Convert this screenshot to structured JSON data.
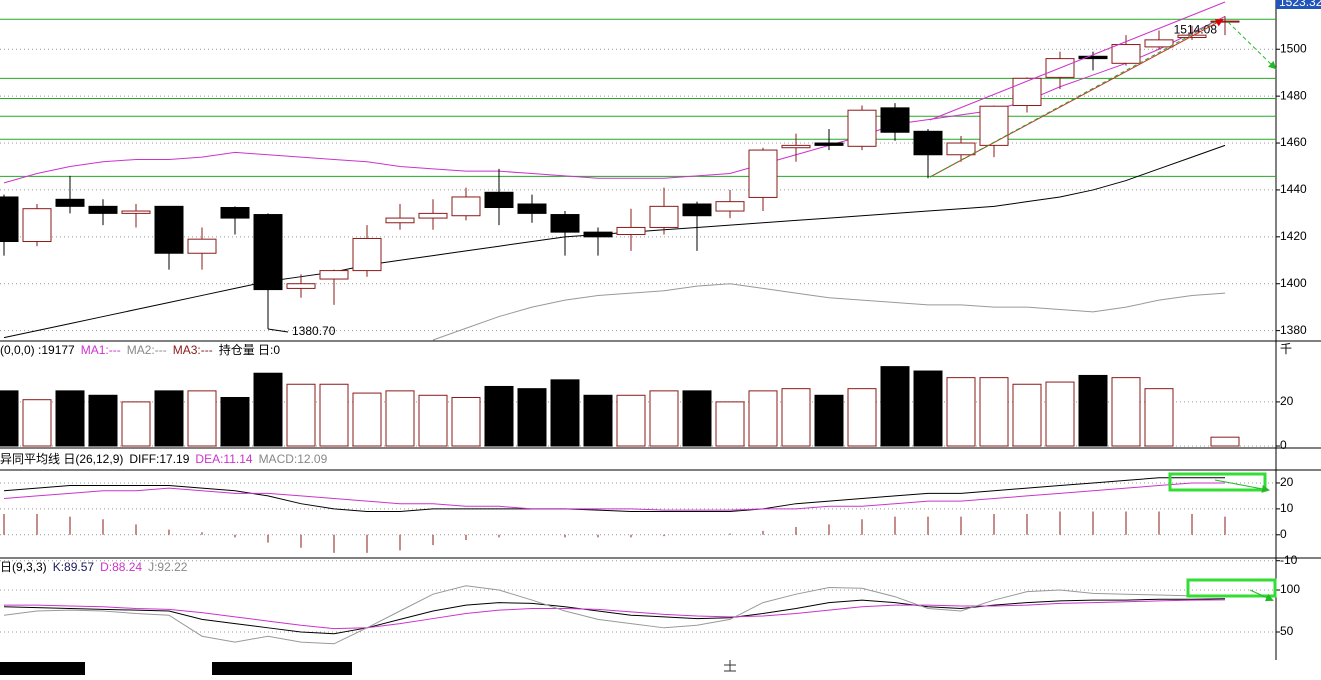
{
  "chart_data": [
    {
      "type": "candlestick",
      "open": [
        1437,
        1418,
        1436,
        1433,
        1430,
        1433,
        1413,
        1432.5,
        1429.5,
        1398,
        1402,
        1405.6,
        1426,
        1428,
        1429,
        1439,
        1434,
        1429.5,
        1422,
        1421,
        1424,
        1434,
        1431,
        1436.8,
        1458,
        1460,
        1458.6,
        1475,
        1465,
        1455,
        1459,
        1476,
        1488,
        1497,
        1494,
        1501,
        1505,
        1512
      ],
      "high": [
        1438,
        1434,
        1446,
        1436,
        1434,
        1433,
        1424,
        1433,
        1430,
        1404,
        1406,
        1425,
        1434,
        1436,
        1441,
        1449,
        1438,
        1431,
        1424,
        1432,
        1441,
        1435,
        1440,
        1458,
        1464,
        1466,
        1476,
        1477,
        1466,
        1463,
        1476,
        1488,
        1499,
        1499,
        1506,
        1508,
        1510,
        1514.08
      ],
      "low": [
        1412,
        1416,
        1430,
        1425,
        1424,
        1406,
        1406,
        1421,
        1380.7,
        1394,
        1391,
        1403,
        1423,
        1423,
        1427,
        1425,
        1426,
        1412,
        1412,
        1414,
        1421,
        1414,
        1428,
        1431,
        1452,
        1457,
        1457,
        1461,
        1445,
        1452,
        1454,
        1473,
        1483,
        1491,
        1493,
        1500,
        1504,
        1506
      ],
      "close": [
        1418,
        1432,
        1433,
        1430,
        1431,
        1413,
        1419,
        1428,
        1397.5,
        1400,
        1405.6,
        1419.3,
        1428,
        1430,
        1437,
        1432.5,
        1430,
        1422,
        1420,
        1424,
        1433,
        1429,
        1435,
        1457,
        1459,
        1459,
        1474,
        1464.6,
        1455,
        1460,
        1475.7,
        1487.6,
        1496,
        1496,
        1502,
        1504,
        1506,
        1512
      ],
      "up_color": "#8b1a1a",
      "down_color": "#000000",
      "series": [
        {
          "color": "#cc33cc",
          "values": [
            1443,
            1447,
            1450,
            1452,
            1453,
            1453,
            1454,
            1456,
            1455,
            1454,
            1453,
            1452,
            1450,
            1449,
            1448,
            1448,
            1447,
            1446,
            1445,
            1445,
            1445,
            1446,
            1447,
            1451,
            1455,
            1459,
            1463,
            1468,
            1470,
            1472,
            1474,
            1478,
            1484,
            1489,
            1494,
            1500,
            1507,
            1514
          ]
        },
        {
          "color": "#000000",
          "values": [
            1377,
            1380,
            1383,
            1386,
            1389,
            1392,
            1395,
            1398,
            1401,
            1403,
            1405,
            1408,
            1410,
            1412,
            1414,
            1416,
            1418,
            1420,
            1421,
            1422,
            1423,
            1424,
            1425,
            1426,
            1427,
            1428,
            1429,
            1430,
            1431,
            1432,
            1433,
            1435,
            1437,
            1440,
            1444,
            1449,
            1454,
            1459
          ]
        },
        {
          "color": "#999999",
          "values": [
            null,
            null,
            null,
            null,
            null,
            null,
            null,
            null,
            null,
            null,
            null,
            null,
            null,
            1376,
            1381,
            1386,
            1390,
            1393,
            1395,
            1396,
            1397,
            1399,
            1400,
            1398,
            1396,
            1394,
            1393,
            1392,
            1391,
            1391,
            1390,
            1390,
            1389,
            1388,
            1390,
            1393,
            1395,
            1396
          ]
        }
      ],
      "hlines": [
        1512.8,
        1487.6,
        1479,
        1471.4,
        1461.6,
        1445.8
      ],
      "hline_color": "#22aa22",
      "ylim": [
        1376,
        1521
      ],
      "yticks": [
        1380,
        1400,
        1420,
        1440,
        1460,
        1480,
        1500
      ],
      "grid": true,
      "last_price_label": "1523.32",
      "annotations": [
        {
          "index": 8,
          "value": 1380.7,
          "label": "1380.70"
        },
        {
          "index": 37,
          "value": 1514.08,
          "label": "1514.08"
        }
      ]
    },
    {
      "type": "volume",
      "legend": [
        {
          "text": "(0,0,0) :19177",
          "color": "#000000"
        },
        {
          "text": "MA1:---",
          "color": "#cc33cc"
        },
        {
          "text": "MA2:---",
          "color": "#888888"
        },
        {
          "text": "MA3:---",
          "color": "#8b1a1a"
        },
        {
          "text": "持仓量 日:0",
          "color": "#000000"
        }
      ],
      "unit_label": "千",
      "values": [
        25,
        21,
        25,
        23,
        20,
        25,
        25,
        22,
        33,
        28,
        28,
        24,
        25,
        23,
        22,
        27,
        26,
        30,
        23,
        23,
        25,
        25,
        20,
        25,
        26,
        23,
        26,
        36,
        34,
        31,
        31,
        28,
        29,
        32,
        31,
        26,
        null,
        4
      ],
      "ylim": [
        0,
        39
      ],
      "yticks": [
        0,
        20
      ],
      "grid": true
    },
    {
      "type": "macd",
      "legend": [
        {
          "text": "异同平均线 日(26,12,9)",
          "color": "#000000"
        },
        {
          "text": "DIFF:17.19",
          "color": "#000000"
        },
        {
          "text": "DEA:11.14",
          "color": "#cc33cc"
        },
        {
          "text": "MACD:12.09",
          "color": "#888888"
        }
      ],
      "bars": {
        "color": "#8b1a1a",
        "values": [
          8,
          8,
          7,
          6,
          4,
          2,
          1,
          -1,
          -3,
          -5,
          -7,
          -7,
          -6,
          -4,
          -2,
          -1,
          0,
          -1,
          -1,
          -1,
          -0.5,
          0,
          0.5,
          1.5,
          3,
          4,
          6,
          7,
          7,
          7,
          8,
          8,
          9,
          9,
          9,
          9,
          8,
          7
        ]
      },
      "series": [
        {
          "color": "#000000",
          "values": [
            17,
            18,
            19,
            19,
            19,
            19,
            18,
            17,
            15,
            12,
            10,
            9,
            9,
            10,
            10,
            10,
            10,
            10,
            9.5,
            9,
            9,
            9,
            9,
            10,
            12,
            13,
            14,
            15,
            16,
            16,
            17,
            18,
            19,
            20,
            21,
            22,
            22,
            22
          ]
        },
        {
          "color": "#cc33cc",
          "values": [
            14,
            15,
            16,
            17,
            17,
            18,
            17,
            16,
            16,
            15,
            14,
            13,
            12,
            12,
            11,
            11,
            10,
            10,
            10,
            10,
            9.5,
            9.5,
            9.5,
            10,
            10,
            11,
            11,
            12,
            13,
            13,
            14,
            15,
            16,
            17,
            18,
            19,
            20,
            20
          ]
        }
      ],
      "ylim": [
        -10.5,
        25
      ],
      "yticks": [
        20,
        10,
        0,
        -10
      ],
      "grid": true
    },
    {
      "type": "line",
      "legend": [
        {
          "text": "日(9,3,3)",
          "color": "#000000"
        },
        {
          "text": "K:89.57",
          "color": "#1a1a5a"
        },
        {
          "text": "D:88.24",
          "color": "#cc33cc"
        },
        {
          "text": "J:92.22",
          "color": "#888888"
        }
      ],
      "series": [
        {
          "color": "#000000",
          "values": [
            80,
            79,
            78,
            77,
            76,
            75,
            65,
            60,
            55,
            50,
            48,
            55,
            65,
            75,
            82,
            85,
            84,
            80,
            75,
            70,
            68,
            66,
            67,
            72,
            78,
            85,
            88,
            85,
            80,
            78,
            82,
            85,
            87,
            88,
            88,
            89,
            89,
            89.57
          ]
        },
        {
          "color": "#cc33cc",
          "values": [
            82,
            82,
            81,
            80,
            78,
            77,
            73,
            68,
            63,
            58,
            54,
            55,
            60,
            66,
            72,
            76,
            78,
            78,
            77,
            74,
            71,
            69,
            68,
            69,
            72,
            76,
            80,
            82,
            82,
            81,
            81,
            82,
            84,
            85,
            86,
            87,
            88,
            88.24
          ]
        },
        {
          "color": "#999999",
          "values": [
            70,
            75,
            76,
            75,
            72,
            70,
            45,
            38,
            45,
            38,
            36,
            55,
            75,
            95,
            105,
            100,
            88,
            75,
            65,
            60,
            55,
            58,
            65,
            85,
            95,
            103,
            102,
            92,
            78,
            75,
            88,
            98,
            100,
            96,
            95,
            94,
            93,
            92.22
          ]
        }
      ],
      "ylim": [
        16.7,
        121.4
      ],
      "yticks": [
        100,
        50
      ],
      "grid": true
    }
  ]
}
